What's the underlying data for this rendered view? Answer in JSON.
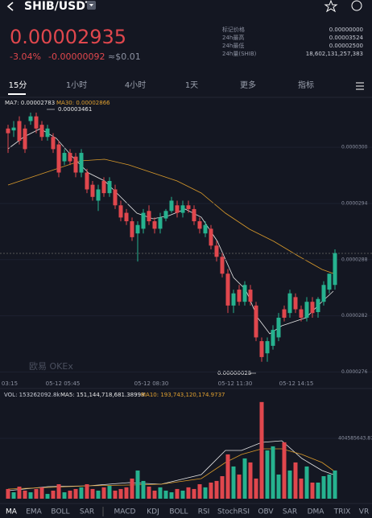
{
  "header": {
    "pair": "SHIB/USDT"
  },
  "price": {
    "last": "0.00002935",
    "change_pct": "-3.04%",
    "change": "-0.00000092",
    "usd": "≈$0.01"
  },
  "stats": [
    {
      "label": "标记价格",
      "value": "0.00000000"
    },
    {
      "label": "24h最高",
      "value": "0.00003524"
    },
    {
      "label": "24h最低",
      "value": "0.00002500"
    },
    {
      "label": "24h量(SHIB)",
      "value": "18,602,131,257,383"
    }
  ],
  "tabs": [
    "15分",
    "1小时",
    "4小时",
    "1天",
    "更多",
    "指标"
  ],
  "ma_legend": [
    "MA7: 0.00002783",
    "MA30: 0.00002866"
  ],
  "high_marker": "0.00003461",
  "low_marker": "0.00000025",
  "watermark": "欧易 OKEx",
  "time_labels": [
    "03:15",
    "05-12 05:45",
    "05-12 08:30",
    "05-12 11:30",
    "05-12 14:15"
  ],
  "chart": {
    "type": "candlestick",
    "colors": {
      "up": "#26b28f",
      "down": "#e0474d"
    },
    "ylim": [
      2.745e-05,
      3.037e-05
    ],
    "yticks": [
      {
        "value": 3e-05,
        "label": "0.0000300"
      },
      {
        "value": 2.94e-05,
        "label": "0.0000294"
      },
      {
        "value": 2.88e-05,
        "label": "0.0000288"
      },
      {
        "value": 2.82e-05,
        "label": "0.0000282"
      },
      {
        "value": 2.76e-05,
        "label": "0.0000276"
      }
    ],
    "candles": [
      [
        3.02e-05,
        3.024e-05,
        2.994e-05,
        3.015e-05
      ],
      [
        3.018e-05,
        3.028e-05,
        3.011e-05,
        3.021e-05
      ],
      [
        3.028e-05,
        3.033e-05,
        3.003e-05,
        3.007e-05
      ],
      [
        3.02e-05,
        3.024e-05,
        2.994e-05,
        2.998e-05
      ],
      [
        3.028e-05,
        3.037e-05,
        3.024e-05,
        3.033e-05
      ],
      [
        3.033e-05,
        3.037e-05,
        3.015e-05,
        3.02e-05
      ],
      [
        3.024e-05,
        3.028e-05,
        3.007e-05,
        3.011e-05
      ],
      [
        3.011e-05,
        3.024e-05,
        3.007e-05,
        3.02e-05
      ],
      [
        3.011e-05,
        3.015e-05,
        2.994e-05,
        2.998e-05
      ],
      [
        3.003e-05,
        3.007e-05,
        2.968e-05,
        2.973e-05
      ],
      [
        2.985e-05,
        2.998e-05,
        2.981e-05,
        2.994e-05
      ],
      [
        2.994e-05,
        2.998e-05,
        2.981e-05,
        2.985e-05
      ],
      [
        2.99e-05,
        2.994e-05,
        2.968e-05,
        2.973e-05
      ],
      [
        2.973e-05,
        2.998e-05,
        2.968e-05,
        2.994e-05
      ],
      [
        2.973e-05,
        2.977e-05,
        2.951e-05,
        2.955e-05
      ],
      [
        2.96e-05,
        2.964e-05,
        2.943e-05,
        2.947e-05
      ],
      [
        2.943e-05,
        2.96e-05,
        2.932e-05,
        2.955e-05
      ],
      [
        2.964e-05,
        2.968e-05,
        2.947e-05,
        2.951e-05
      ],
      [
        2.951e-05,
        2.968e-05,
        2.947e-05,
        2.964e-05
      ],
      [
        2.955e-05,
        2.96e-05,
        2.934e-05,
        2.938e-05
      ],
      [
        2.938e-05,
        2.943e-05,
        2.921e-05,
        2.925e-05
      ],
      [
        2.93e-05,
        2.934e-05,
        2.917e-05,
        2.921e-05
      ],
      [
        2.921e-05,
        2.925e-05,
        2.9e-05,
        2.904e-05
      ],
      [
        2.908e-05,
        2.921e-05,
        2.878e-05,
        2.917e-05
      ],
      [
        2.913e-05,
        2.934e-05,
        2.908e-05,
        2.93e-05
      ],
      [
        2.932e-05,
        2.938e-05,
        2.917e-05,
        2.921e-05
      ],
      [
        2.921e-05,
        2.925e-05,
        2.908e-05,
        2.913e-05
      ],
      [
        2.913e-05,
        2.93e-05,
        2.908e-05,
        2.925e-05
      ],
      [
        2.924e-05,
        2.934e-05,
        2.921e-05,
        2.932e-05
      ],
      [
        2.932e-05,
        2.947e-05,
        2.93e-05,
        2.943e-05
      ],
      [
        2.938e-05,
        2.943e-05,
        2.925e-05,
        2.93e-05
      ],
      [
        2.93e-05,
        2.943e-05,
        2.925e-05,
        2.938e-05
      ],
      [
        2.938e-05,
        2.943e-05,
        2.93e-05,
        2.934e-05
      ],
      [
        2.934e-05,
        2.938e-05,
        2.917e-05,
        2.921e-05
      ],
      [
        2.921e-05,
        2.925e-05,
        2.908e-05,
        2.913e-05
      ],
      [
        2.908e-05,
        2.921e-05,
        2.904e-05,
        2.917e-05
      ],
      [
        2.913e-05,
        2.917e-05,
        2.891e-05,
        2.895e-05
      ],
      [
        2.895e-05,
        2.9e-05,
        2.878e-05,
        2.883e-05
      ],
      [
        2.883e-05,
        2.887e-05,
        2.861e-05,
        2.865e-05
      ],
      [
        2.865e-05,
        2.87e-05,
        2.823e-05,
        2.831e-05
      ],
      [
        2.831e-05,
        2.848e-05,
        2.823e-05,
        2.844e-05
      ],
      [
        2.848e-05,
        2.853e-05,
        2.831e-05,
        2.835e-05
      ],
      [
        2.835e-05,
        2.857e-05,
        2.831e-05,
        2.853e-05
      ],
      [
        2.848e-05,
        2.853e-05,
        2.831e-05,
        2.835e-05
      ],
      [
        2.831e-05,
        2.835e-05,
        2.793e-05,
        2.797e-05
      ],
      [
        2.793e-05,
        2.797e-05,
        2.771e-05,
        2.776e-05
      ],
      [
        2.78e-05,
        2.797e-05,
        2.771e-05,
        2.793e-05
      ],
      [
        2.788e-05,
        2.81e-05,
        2.784e-05,
        2.805e-05
      ],
      [
        2.797e-05,
        2.823e-05,
        2.793e-05,
        2.818e-05
      ],
      [
        2.827e-05,
        2.831e-05,
        2.814e-05,
        2.818e-05
      ],
      [
        2.823e-05,
        2.848e-05,
        2.818e-05,
        2.844e-05
      ],
      [
        2.84e-05,
        2.844e-05,
        2.823e-05,
        2.827e-05
      ],
      [
        2.827e-05,
        2.831e-05,
        2.814e-05,
        2.818e-05
      ],
      [
        2.818e-05,
        2.84e-05,
        2.814e-05,
        2.835e-05
      ],
      [
        2.835e-05,
        2.84e-05,
        2.818e-05,
        2.823e-05
      ],
      [
        2.824e-05,
        2.84e-05,
        2.818e-05,
        2.838e-05
      ],
      [
        2.835e-05,
        2.857e-05,
        2.831e-05,
        2.853e-05
      ],
      [
        2.848e-05,
        2.865e-05,
        2.844e-05,
        2.865e-05
      ],
      [
        2.853e-05,
        2.891e-05,
        2.848e-05,
        2.887e-05
      ]
    ]
  },
  "volume": {
    "legend": [
      "VOL: 153262092.8k",
      "MA5: 151,144,718,681.38998",
      "MA10: 193,743,120,174.9737"
    ],
    "ylim": [
      0,
      674000000
    ],
    "yticks": [
      {
        "value": 404585643.8731,
        "label": "404585643.8731000"
      }
    ],
    "values": [
      65000000,
      43000000,
      81000000,
      54000000,
      43000000,
      65000000,
      76000000,
      32000000,
      54000000,
      97000000,
      43000000,
      54000000,
      65000000,
      76000000,
      97000000,
      65000000,
      54000000,
      76000000,
      86000000,
      54000000,
      65000000,
      76000000,
      135000000,
      189000000,
      119000000,
      81000000,
      54000000,
      76000000,
      54000000,
      43000000,
      65000000,
      54000000,
      76000000,
      65000000,
      97000000,
      76000000,
      108000000,
      119000000,
      151000000,
      297000000,
      216000000,
      162000000,
      270000000,
      243000000,
      135000000,
      648000000,
      324000000,
      351000000,
      162000000,
      378000000,
      189000000,
      243000000,
      135000000,
      216000000,
      108000000,
      108000000,
      151000000,
      162000000,
      189000000
    ]
  },
  "indicators": [
    "MA",
    "EMA",
    "BOLL",
    "SAR",
    "MACD",
    "KDJ",
    "BOLL",
    "RSI",
    "StochRSI",
    "OBV",
    "SAR",
    "DMA",
    "TRIX",
    "VR"
  ]
}
